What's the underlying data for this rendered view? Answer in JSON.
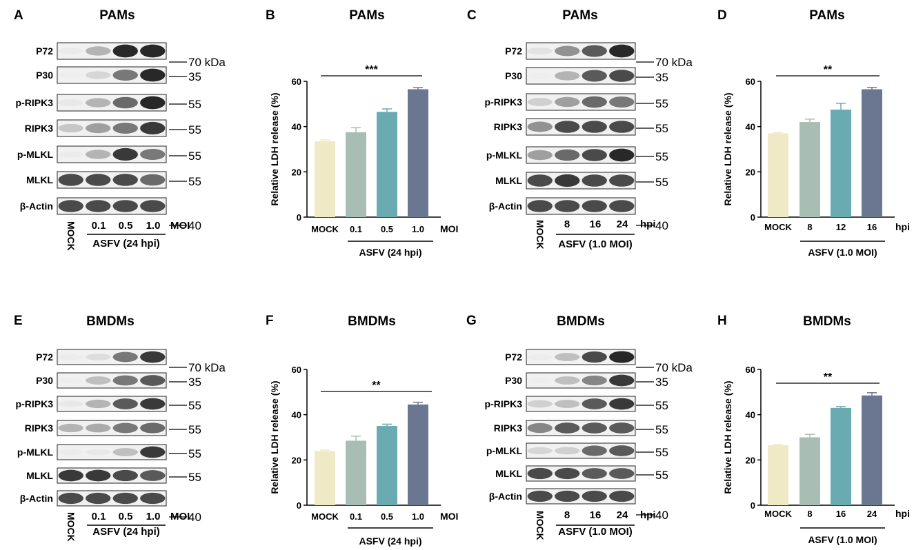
{
  "colors": {
    "bar_palette": [
      "#efe9c5",
      "#a8bdb4",
      "#69abb1",
      "#6b7791"
    ],
    "band_dark": "#1c1c1c",
    "band_bg": "#f1f1f1"
  },
  "blots": [
    {
      "id": "A",
      "panel_letter": "A",
      "title": "PAMs",
      "lanes": [
        "MOCK",
        "0.1",
        "0.5",
        "1.0"
      ],
      "unit": "MOI",
      "group_label": "ASFV (24 hpi)",
      "rows": [
        {
          "protein": "P72",
          "marker": "70 kDa",
          "intensity": [
            0.08,
            0.45,
            0.95,
            0.95
          ]
        },
        {
          "protein": "P30",
          "marker": "35",
          "intensity": [
            0.02,
            0.25,
            0.7,
            0.95
          ]
        },
        {
          "protein": "p-RIPK3",
          "marker": "55",
          "intensity": [
            0.1,
            0.45,
            0.75,
            0.95
          ]
        },
        {
          "protein": "RIPK3",
          "marker": "55",
          "intensity": [
            0.35,
            0.55,
            0.7,
            0.9
          ]
        },
        {
          "protein": "p-MLKL",
          "marker": "55",
          "intensity": [
            0.05,
            0.45,
            0.9,
            0.7
          ]
        },
        {
          "protein": "MLKL",
          "marker": "55",
          "intensity": [
            0.85,
            0.85,
            0.85,
            0.75
          ]
        },
        {
          "protein": "β-Actin",
          "marker": "40",
          "intensity": [
            0.85,
            0.85,
            0.85,
            0.85
          ]
        }
      ]
    },
    {
      "id": "C",
      "panel_letter": "C",
      "title": "PAMs",
      "lanes": [
        "MOCK",
        "8",
        "16",
        "24"
      ],
      "unit": "hpi",
      "group_label": "ASFV (1.0 MOI)",
      "rows": [
        {
          "protein": "P72",
          "marker": "70 kDa",
          "intensity": [
            0.15,
            0.6,
            0.8,
            0.95
          ]
        },
        {
          "protein": "P30",
          "marker": "35",
          "intensity": [
            0.02,
            0.45,
            0.8,
            0.85
          ]
        },
        {
          "protein": "p-RIPK3",
          "marker": "55",
          "intensity": [
            0.3,
            0.55,
            0.75,
            0.7
          ]
        },
        {
          "protein": "RIPK3",
          "marker": "55",
          "intensity": [
            0.6,
            0.85,
            0.85,
            0.85
          ]
        },
        {
          "protein": "p-MLKL",
          "marker": "55",
          "intensity": [
            0.55,
            0.75,
            0.85,
            0.95
          ]
        },
        {
          "protein": "MLKL",
          "marker": "55",
          "intensity": [
            0.85,
            0.9,
            0.85,
            0.85
          ]
        },
        {
          "protein": "β-Actin",
          "marker": "40",
          "intensity": [
            0.85,
            0.85,
            0.85,
            0.85
          ]
        }
      ]
    },
    {
      "id": "E",
      "panel_letter": "E",
      "title": "BMDMs",
      "lanes": [
        "MOCK",
        "0.1",
        "0.5",
        "1.0"
      ],
      "unit": "MOI",
      "group_label": "ASFV (24 hpi)",
      "rows": [
        {
          "protein": "P72",
          "marker": "70 kDa",
          "intensity": [
            0.05,
            0.2,
            0.7,
            0.9
          ]
        },
        {
          "protein": "P30",
          "marker": "35",
          "intensity": [
            0.02,
            0.4,
            0.7,
            0.8
          ]
        },
        {
          "protein": "p-RIPK3",
          "marker": "55",
          "intensity": [
            0.1,
            0.45,
            0.8,
            0.9
          ]
        },
        {
          "protein": "RIPK3",
          "marker": "55",
          "intensity": [
            0.45,
            0.5,
            0.7,
            0.75
          ]
        },
        {
          "protein": "p-MLKL",
          "marker": "55",
          "intensity": [
            0.05,
            0.1,
            0.4,
            0.9
          ]
        },
        {
          "protein": "MLKL",
          "marker": "55",
          "intensity": [
            0.9,
            0.9,
            0.85,
            0.8
          ]
        },
        {
          "protein": "β-Actin",
          "marker": "40",
          "intensity": [
            0.85,
            0.85,
            0.85,
            0.85
          ]
        }
      ]
    },
    {
      "id": "G",
      "panel_letter": "G",
      "title": "BMDMs",
      "lanes": [
        "MOCK",
        "8",
        "16",
        "24"
      ],
      "unit": "hpi",
      "group_label": "ASFV (1.0 MOI)",
      "rows": [
        {
          "protein": "P72",
          "marker": "70 kDa",
          "intensity": [
            0.05,
            0.4,
            0.85,
            0.95
          ]
        },
        {
          "protein": "P30",
          "marker": "35",
          "intensity": [
            0.02,
            0.4,
            0.65,
            0.9
          ]
        },
        {
          "protein": "p-RIPK3",
          "marker": "55",
          "intensity": [
            0.3,
            0.4,
            0.8,
            0.9
          ]
        },
        {
          "protein": "RIPK3",
          "marker": "55",
          "intensity": [
            0.65,
            0.8,
            0.8,
            0.8
          ]
        },
        {
          "protein": "p-MLKL",
          "marker": "55",
          "intensity": [
            0.25,
            0.3,
            0.75,
            0.8
          ]
        },
        {
          "protein": "MLKL",
          "marker": "55",
          "intensity": [
            0.85,
            0.85,
            0.8,
            0.8
          ]
        },
        {
          "protein": "β-Actin",
          "marker": "40",
          "intensity": [
            0.85,
            0.85,
            0.85,
            0.85
          ]
        }
      ]
    }
  ],
  "chart_data": [
    {
      "id": "B",
      "panel_letter": "B",
      "type": "bar",
      "title": "PAMs",
      "ylabel": "Relative LDH release (%)",
      "xlabel": "",
      "ylim": [
        0,
        60
      ],
      "yticks": [
        0,
        20,
        40,
        60
      ],
      "categories": [
        "MOCK",
        "0.1",
        "0.5",
        "1.0"
      ],
      "values": [
        33.5,
        37.5,
        46.5,
        56.5
      ],
      "errors": [
        0.6,
        2.0,
        1.3,
        0.7
      ],
      "unit_label": "MOI",
      "group_label": "ASFV (24 hpi)",
      "significance": "***"
    },
    {
      "id": "D",
      "panel_letter": "D",
      "type": "bar",
      "title": "PAMs",
      "ylabel": "Relative LDH release (%)",
      "xlabel": "",
      "ylim": [
        0,
        60
      ],
      "yticks": [
        0,
        20,
        40,
        60
      ],
      "categories": [
        "MOCK",
        "8",
        "12",
        "16"
      ],
      "values": [
        37.0,
        42.0,
        47.5,
        56.5
      ],
      "errors": [
        0.3,
        1.3,
        2.8,
        0.8
      ],
      "unit_label": "hpi",
      "group_label": "ASFV (1.0 MOI)",
      "significance": "**"
    },
    {
      "id": "F",
      "panel_letter": "F",
      "type": "bar",
      "title": "BMDMs",
      "ylabel": "Relative LDH release (%)",
      "xlabel": "",
      "ylim": [
        0,
        60
      ],
      "yticks": [
        0,
        20,
        40,
        60
      ],
      "categories": [
        "MOCK",
        "0.1",
        "0.5",
        "1.0"
      ],
      "values": [
        24.0,
        28.5,
        35.0,
        44.5
      ],
      "errors": [
        0.4,
        2.0,
        0.8,
        1.0
      ],
      "unit_label": "MOI",
      "group_label": "ASFV (24 hpi)",
      "significance": "**"
    },
    {
      "id": "H",
      "panel_letter": "H",
      "type": "bar",
      "title": "BMDMs",
      "ylabel": "Relative LDH release (%)",
      "xlabel": "",
      "ylim": [
        0,
        60
      ],
      "yticks": [
        0,
        20,
        40,
        60
      ],
      "categories": [
        "MOCK",
        "8",
        "16",
        "24"
      ],
      "values": [
        26.5,
        30.0,
        43.0,
        48.5
      ],
      "errors": [
        0.3,
        1.3,
        0.6,
        1.2
      ],
      "unit_label": "hpi",
      "group_label": "ASFV (1.0 MOI)",
      "significance": "**"
    }
  ]
}
